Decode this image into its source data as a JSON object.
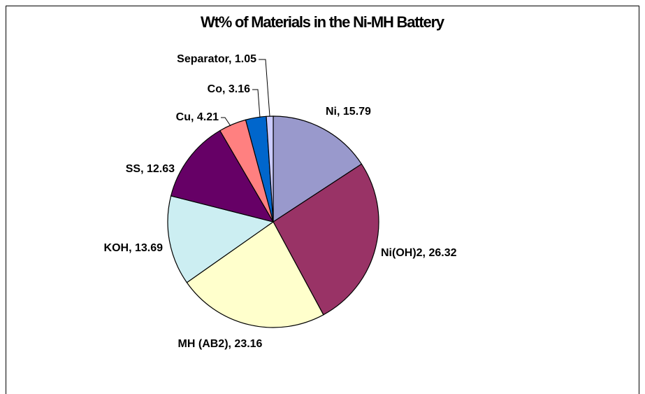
{
  "chart_data": {
    "type": "pie",
    "title": "Wt% of Materials in the Ni-MH Battery",
    "values": [
      15.79,
      26.32,
      23.16,
      13.69,
      12.63,
      4.21,
      3.16,
      1.05
    ],
    "value_labels": [
      "Ni, 15.79",
      "Ni(OH)2, 26.32",
      "MH (AB2), 23.16",
      "KOH, 13.69",
      "SS, 12.63",
      "Cu, 4.21",
      "Co, 3.16",
      "Separator, 1.05"
    ],
    "colors": [
      "#9999cc",
      "#993366",
      "#ffffcc",
      "#cceef2",
      "#660066",
      "#ff8080",
      "#0066cc",
      "#ccccff"
    ]
  }
}
